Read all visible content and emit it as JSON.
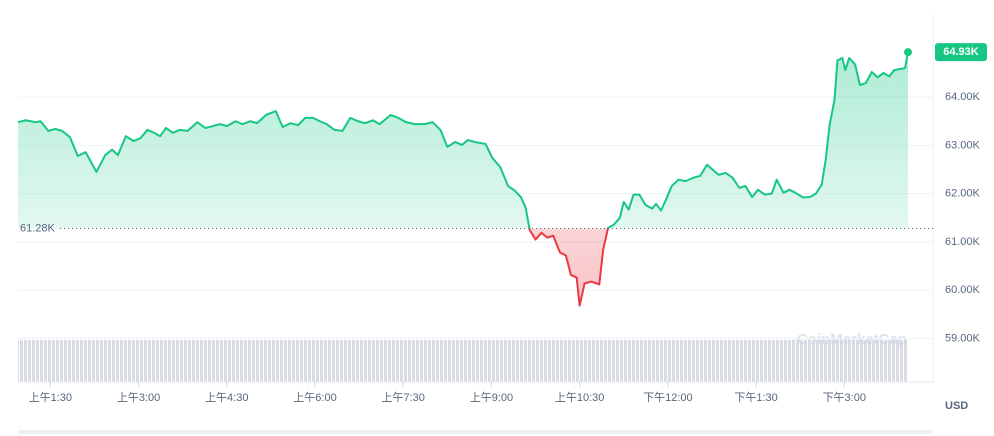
{
  "chart_data": {
    "type": "line",
    "x": [
      57,
      65,
      75,
      80,
      88,
      95,
      102,
      110,
      118,
      126,
      137,
      146,
      153,
      159,
      167,
      175,
      182,
      189,
      196,
      202,
      208,
      215,
      222,
      230,
      240,
      248,
      256,
      263,
      270,
      279,
      286,
      294,
      301,
      310,
      320,
      327,
      335,
      343,
      350,
      358,
      365,
      372,
      380,
      388,
      396,
      404,
      411,
      419,
      426,
      437,
      445,
      453,
      462,
      472,
      480,
      488,
      495,
      503,
      510,
      516,
      523,
      534,
      541,
      549,
      557,
      564,
      570,
      575,
      579,
      585,
      591,
      597,
      603,
      610,
      616,
      621,
      627,
      630,
      635,
      642,
      650,
      654,
      659,
      665,
      671,
      675,
      680,
      685,
      691,
      697,
      704,
      708,
      713,
      718,
      724,
      731,
      738,
      746,
      753,
      760,
      766,
      772,
      779,
      786,
      793,
      799,
      806,
      812,
      819,
      826,
      831,
      838,
      844,
      850,
      858,
      865,
      871,
      877,
      881,
      885,
      890,
      893,
      898,
      901,
      905,
      911,
      916,
      922,
      928,
      934,
      940,
      946,
      951,
      956,
      962,
      965
    ],
    "values": [
      63480,
      63520,
      63480,
      63500,
      63300,
      63340,
      63300,
      63170,
      62780,
      62860,
      62450,
      62800,
      62910,
      62800,
      63190,
      63090,
      63150,
      63320,
      63260,
      63190,
      63360,
      63260,
      63320,
      63300,
      63480,
      63360,
      63400,
      63440,
      63400,
      63500,
      63440,
      63500,
      63460,
      63630,
      63710,
      63380,
      63460,
      63420,
      63570,
      63570,
      63500,
      63440,
      63320,
      63300,
      63570,
      63500,
      63460,
      63520,
      63440,
      63630,
      63570,
      63480,
      63440,
      63440,
      63480,
      63320,
      62970,
      63070,
      63010,
      63110,
      63070,
      63030,
      62740,
      62550,
      62160,
      62060,
      61930,
      61710,
      61250,
      61050,
      61190,
      61090,
      61130,
      60780,
      60720,
      60320,
      60260,
      59680,
      60140,
      60180,
      60120,
      60840,
      61290,
      61360,
      61500,
      61830,
      61670,
      61980,
      61980,
      61770,
      61690,
      61790,
      61650,
      61870,
      62160,
      62290,
      62260,
      62330,
      62370,
      62600,
      62490,
      62390,
      62430,
      62330,
      62120,
      62160,
      61930,
      62080,
      61980,
      62000,
      62290,
      62020,
      62080,
      62020,
      61920,
      61930,
      62000,
      62190,
      62700,
      63420,
      63940,
      64760,
      64810,
      64560,
      64810,
      64680,
      64250,
      64290,
      64520,
      64410,
      64500,
      64430,
      64560,
      64580,
      64600,
      64930
    ],
    "up_color": "#16c784",
    "down_color": "#ea3943",
    "baseline": {
      "value": 61280,
      "label": "61.28K"
    },
    "last_price": {
      "value": 64930,
      "label": "64.93K"
    },
    "xlim": [
      57,
      965
    ],
    "ylim": [
      58100,
      65700
    ],
    "xticks": [
      {
        "value": 90,
        "label": "上午1:30"
      },
      {
        "value": 180,
        "label": "上午3:00"
      },
      {
        "value": 270,
        "label": "上午4:30"
      },
      {
        "value": 360,
        "label": "上午6:00"
      },
      {
        "value": 450,
        "label": "上午7:30"
      },
      {
        "value": 540,
        "label": "上午9:00"
      },
      {
        "value": 630,
        "label": "上午10:30"
      },
      {
        "value": 720,
        "label": "下午12:00"
      },
      {
        "value": 810,
        "label": "下午1:30"
      },
      {
        "value": 900,
        "label": "下午3:00"
      }
    ],
    "yticks": [
      {
        "value": 59000,
        "label": "59.00K"
      },
      {
        "value": 60000,
        "label": "60.00K"
      },
      {
        "value": 61000,
        "label": "61.00K"
      },
      {
        "value": 62000,
        "label": "62.00K"
      },
      {
        "value": 63000,
        "label": "63.00K"
      },
      {
        "value": 64000,
        "label": "64.00K"
      }
    ],
    "grid": true,
    "currency": "USD",
    "watermark": "CoinMarketCap"
  }
}
